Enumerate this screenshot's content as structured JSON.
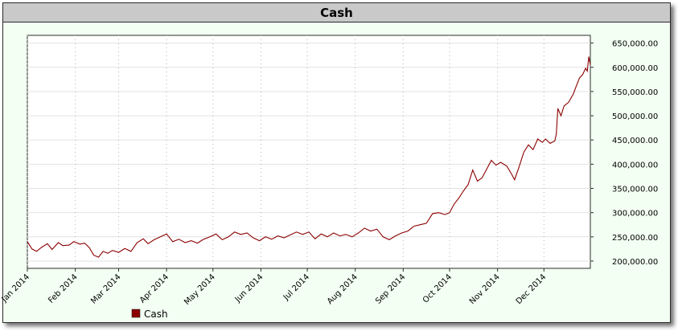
{
  "chart_data": {
    "type": "line",
    "title": "Cash",
    "xlabel": "",
    "ylabel": "",
    "x_tick_labels": [
      "Jan 2014",
      "Feb 2014",
      "Mar 2014",
      "Apr 2014",
      "May 2014",
      "Jun 2014",
      "Jul 2014",
      "Aug 2014",
      "Sep 2014",
      "Oct 2014",
      "Nov 2014",
      "Dec 2014"
    ],
    "x_tick_dates": [
      "2014-01-01",
      "2014-02-01",
      "2014-03-01",
      "2014-04-01",
      "2014-05-01",
      "2014-06-01",
      "2014-07-01",
      "2014-08-01",
      "2014-09-01",
      "2014-10-01",
      "2014-11-01",
      "2014-12-01"
    ],
    "xlim": [
      "2014-01-01",
      "2014-12-31"
    ],
    "y_tick_values": [
      200000,
      250000,
      300000,
      350000,
      400000,
      450000,
      500000,
      550000,
      600000,
      650000
    ],
    "y_tick_labels": [
      "200,000.00",
      "250,000.00",
      "300,000.00",
      "350,000.00",
      "400,000.00",
      "450,000.00",
      "500,000.00",
      "550,000.00",
      "600,000.00",
      "650,000.00"
    ],
    "ylim": [
      185000,
      666000
    ],
    "y_axis_position": "right",
    "grid": true,
    "legend_position": "bottom-left",
    "series": [
      {
        "name": "Cash",
        "color": "#8b0000",
        "points": [
          [
            "2014-01-01",
            240000
          ],
          [
            "2014-01-04",
            225000
          ],
          [
            "2014-01-07",
            220000
          ],
          [
            "2014-01-10",
            228000
          ],
          [
            "2014-01-14",
            236000
          ],
          [
            "2014-01-17",
            224000
          ],
          [
            "2014-01-21",
            238000
          ],
          [
            "2014-01-24",
            232000
          ],
          [
            "2014-01-28",
            233000
          ],
          [
            "2014-01-31",
            240000
          ],
          [
            "2014-02-04",
            235000
          ],
          [
            "2014-02-07",
            237000
          ],
          [
            "2014-02-10",
            228000
          ],
          [
            "2014-02-13",
            212000
          ],
          [
            "2014-02-16",
            208000
          ],
          [
            "2014-02-19",
            220000
          ],
          [
            "2014-02-22",
            216000
          ],
          [
            "2014-02-25",
            222000
          ],
          [
            "2014-03-01",
            218000
          ],
          [
            "2014-03-05",
            226000
          ],
          [
            "2014-03-09",
            220000
          ],
          [
            "2014-03-13",
            238000
          ],
          [
            "2014-03-17",
            246000
          ],
          [
            "2014-03-20",
            236000
          ],
          [
            "2014-03-24",
            244000
          ],
          [
            "2014-03-28",
            250000
          ],
          [
            "2014-04-01",
            256000
          ],
          [
            "2014-04-05",
            240000
          ],
          [
            "2014-04-09",
            245000
          ],
          [
            "2014-04-13",
            238000
          ],
          [
            "2014-04-17",
            242000
          ],
          [
            "2014-04-21",
            237000
          ],
          [
            "2014-04-25",
            245000
          ],
          [
            "2014-04-29",
            250000
          ],
          [
            "2014-05-03",
            256000
          ],
          [
            "2014-05-07",
            244000
          ],
          [
            "2014-05-11",
            250000
          ],
          [
            "2014-05-15",
            260000
          ],
          [
            "2014-05-19",
            255000
          ],
          [
            "2014-05-23",
            258000
          ],
          [
            "2014-05-27",
            248000
          ],
          [
            "2014-05-31",
            242000
          ],
          [
            "2014-06-04",
            250000
          ],
          [
            "2014-06-08",
            245000
          ],
          [
            "2014-06-12",
            252000
          ],
          [
            "2014-06-16",
            248000
          ],
          [
            "2014-06-20",
            254000
          ],
          [
            "2014-06-24",
            260000
          ],
          [
            "2014-06-28",
            255000
          ],
          [
            "2014-07-02",
            260000
          ],
          [
            "2014-07-06",
            246000
          ],
          [
            "2014-07-10",
            256000
          ],
          [
            "2014-07-14",
            250000
          ],
          [
            "2014-07-18",
            258000
          ],
          [
            "2014-07-22",
            252000
          ],
          [
            "2014-07-26",
            255000
          ],
          [
            "2014-07-30",
            250000
          ],
          [
            "2014-08-03",
            258000
          ],
          [
            "2014-08-07",
            268000
          ],
          [
            "2014-08-11",
            262000
          ],
          [
            "2014-08-15",
            266000
          ],
          [
            "2014-08-19",
            250000
          ],
          [
            "2014-08-23",
            244000
          ],
          [
            "2014-08-27",
            252000
          ],
          [
            "2014-08-31",
            258000
          ],
          [
            "2014-09-04",
            262000
          ],
          [
            "2014-09-08",
            272000
          ],
          [
            "2014-09-12",
            275000
          ],
          [
            "2014-09-16",
            278000
          ],
          [
            "2014-09-20",
            298000
          ],
          [
            "2014-09-24",
            300000
          ],
          [
            "2014-09-28",
            296000
          ],
          [
            "2014-10-01",
            300000
          ],
          [
            "2014-10-04",
            318000
          ],
          [
            "2014-10-07",
            330000
          ],
          [
            "2014-10-10",
            345000
          ],
          [
            "2014-10-13",
            358000
          ],
          [
            "2014-10-16",
            388000
          ],
          [
            "2014-10-19",
            365000
          ],
          [
            "2014-10-22",
            372000
          ],
          [
            "2014-10-25",
            390000
          ],
          [
            "2014-10-28",
            408000
          ],
          [
            "2014-10-31",
            398000
          ],
          [
            "2014-11-03",
            404000
          ],
          [
            "2014-11-07",
            396000
          ],
          [
            "2014-11-10",
            380000
          ],
          [
            "2014-11-12",
            368000
          ],
          [
            "2014-11-15",
            395000
          ],
          [
            "2014-11-18",
            425000
          ],
          [
            "2014-11-21",
            440000
          ],
          [
            "2014-11-24",
            430000
          ],
          [
            "2014-11-27",
            452000
          ],
          [
            "2014-11-30",
            445000
          ],
          [
            "2014-12-02",
            452000
          ],
          [
            "2014-12-05",
            443000
          ],
          [
            "2014-12-08",
            448000
          ],
          [
            "2014-12-09",
            462000
          ],
          [
            "2014-12-10",
            515000
          ],
          [
            "2014-12-12",
            500000
          ],
          [
            "2014-12-14",
            520000
          ],
          [
            "2014-12-17",
            528000
          ],
          [
            "2014-12-20",
            545000
          ],
          [
            "2014-12-22",
            562000
          ],
          [
            "2014-12-24",
            578000
          ],
          [
            "2014-12-26",
            585000
          ],
          [
            "2014-12-28",
            598000
          ],
          [
            "2014-12-29",
            592000
          ],
          [
            "2014-12-30",
            622000
          ],
          [
            "2014-12-31",
            605000
          ]
        ]
      }
    ]
  }
}
